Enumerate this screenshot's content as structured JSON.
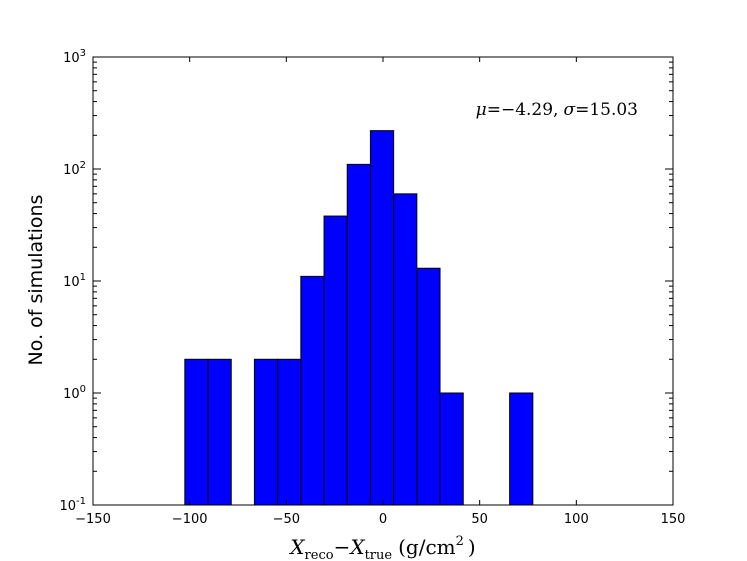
{
  "chart_data": {
    "type": "bar",
    "subtype": "histogram",
    "y_scale": "log",
    "xlim": [
      -150,
      150
    ],
    "ylim": [
      0.1,
      1000
    ],
    "x_ticks": [
      -150,
      -100,
      -50,
      0,
      50,
      100,
      150
    ],
    "x_tick_labels": [
      "−150",
      "−100",
      "−50",
      "0",
      "50",
      "100",
      "150"
    ],
    "y_ticks": [
      {
        "value": 0.1,
        "base": "10",
        "exp": "-1"
      },
      {
        "value": 1,
        "base": "10",
        "exp": "0"
      },
      {
        "value": 10,
        "base": "10",
        "exp": "1"
      },
      {
        "value": 100,
        "base": "10",
        "exp": "2"
      },
      {
        "value": 1000,
        "base": "10",
        "exp": "3"
      }
    ],
    "bins": [
      {
        "x0": -102.5,
        "x1": -90.5,
        "count": 2
      },
      {
        "x0": -90.5,
        "x1": -78.5,
        "count": 2
      },
      {
        "x0": -66.5,
        "x1": -54.5,
        "count": 2
      },
      {
        "x0": -54.5,
        "x1": -42.5,
        "count": 2
      },
      {
        "x0": -42.5,
        "x1": -30.5,
        "count": 11
      },
      {
        "x0": -30.5,
        "x1": -18.5,
        "count": 38
      },
      {
        "x0": -18.5,
        "x1": -6.5,
        "count": 110
      },
      {
        "x0": -6.5,
        "x1": 5.5,
        "count": 220
      },
      {
        "x0": 5.5,
        "x1": 17.5,
        "count": 60
      },
      {
        "x0": 17.5,
        "x1": 29.5,
        "count": 13
      },
      {
        "x0": 29.5,
        "x1": 41.5,
        "count": 1
      },
      {
        "x0": 65.5,
        "x1": 77.5,
        "count": 1
      }
    ],
    "bar_color": "#0000ff",
    "ylabel": "No. of simulations",
    "xlabel": {
      "x1": "X",
      "x1_sub": "reco",
      "minus": "−",
      "x2": "X",
      "x2_sub": "true",
      "unit_open": "(g/cm",
      "unit_sup": "2",
      "unit_close": ")"
    },
    "annotation": {
      "mu_symbol": "μ",
      "mu_value": "=−4.29,",
      "sigma_symbol": "σ",
      "sigma_value": "=15.03"
    },
    "grid": false,
    "legend": "none"
  }
}
